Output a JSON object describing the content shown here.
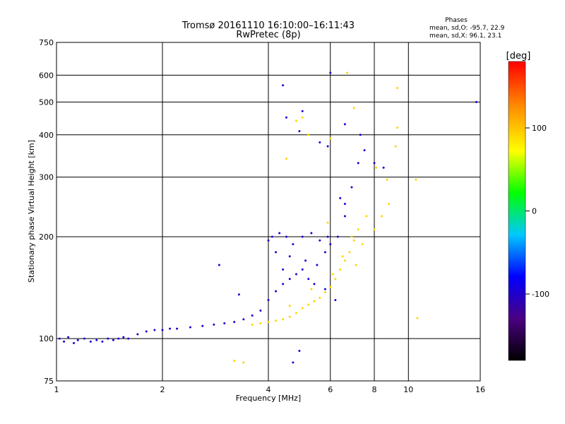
{
  "chart_data": {
    "type": "scatter",
    "title": "Tromsø 20161110 16:10:00–16:11:43",
    "subtitle": "RwPretec (8p)",
    "xlabel": "Frequency [MHz]",
    "ylabel": "Stationary phase Virtual Height [km]",
    "x_scale": "log",
    "y_scale": "log",
    "xlim": [
      1,
      16
    ],
    "ylim": [
      75,
      750
    ],
    "xticks": [
      {
        "value": 1,
        "label": "1"
      },
      {
        "value": 2,
        "label": "2"
      },
      {
        "value": 4,
        "label": "4"
      },
      {
        "value": 6,
        "label": "6"
      },
      {
        "value": 8,
        "label": "8"
      },
      {
        "value": 10,
        "label": "10"
      },
      {
        "value": 16,
        "label": "16"
      }
    ],
    "yticks": [
      {
        "value": 75,
        "label": "75"
      },
      {
        "value": 100,
        "label": "100"
      },
      {
        "value": 200,
        "label": "200"
      },
      {
        "value": 300,
        "label": "300"
      },
      {
        "value": 400,
        "label": "400"
      },
      {
        "value": 500,
        "label": "500"
      },
      {
        "value": 600,
        "label": "600"
      },
      {
        "value": 750,
        "label": "750"
      }
    ],
    "grid": true,
    "stats": {
      "heading": "Phases",
      "line_o": "mean, sd,O: -95.7, 22.9",
      "line_x": "mean, sd,X:  96.1, 23.1"
    },
    "colorbar": {
      "label": "[deg]",
      "range": [
        -180,
        180
      ],
      "ticks": [
        {
          "value": 100,
          "label": "100"
        },
        {
          "value": 0,
          "label": "0"
        },
        {
          "value": -100,
          "label": "-100"
        }
      ],
      "colormap": [
        "#000000",
        "#4b0082",
        "#0000ff",
        "#00c8ff",
        "#00ff00",
        "#ffff00",
        "#ff8c00",
        "#ff0000"
      ]
    },
    "series": [
      {
        "mode": "O",
        "phase_mean": -95.7,
        "phase_sd": 22.9,
        "points": [
          [
            1.02,
            100
          ],
          [
            1.05,
            98
          ],
          [
            1.08,
            101
          ],
          [
            1.12,
            97
          ],
          [
            1.15,
            99
          ],
          [
            1.2,
            100
          ],
          [
            1.25,
            98
          ],
          [
            1.3,
            99
          ],
          [
            1.35,
            98
          ],
          [
            1.4,
            100
          ],
          [
            1.45,
            99
          ],
          [
            1.5,
            100
          ],
          [
            1.55,
            101
          ],
          [
            1.6,
            100
          ],
          [
            1.7,
            103
          ],
          [
            1.8,
            105
          ],
          [
            1.9,
            106
          ],
          [
            2.0,
            106
          ],
          [
            2.1,
            107
          ],
          [
            2.2,
            107
          ],
          [
            2.4,
            108
          ],
          [
            2.6,
            109
          ],
          [
            2.8,
            110
          ],
          [
            3.0,
            111
          ],
          [
            3.2,
            112
          ],
          [
            3.4,
            114
          ],
          [
            3.6,
            117
          ],
          [
            3.8,
            121
          ],
          [
            4.0,
            130
          ],
          [
            4.2,
            138
          ],
          [
            4.4,
            145
          ],
          [
            4.6,
            150
          ],
          [
            4.8,
            155
          ],
          [
            5.0,
            160
          ],
          [
            5.2,
            150
          ],
          [
            5.5,
            165
          ],
          [
            5.8,
            180
          ],
          [
            6.0,
            190
          ],
          [
            6.3,
            200
          ],
          [
            6.6,
            230
          ],
          [
            6.9,
            280
          ],
          [
            7.2,
            330
          ],
          [
            7.5,
            360
          ],
          [
            8.0,
            330
          ],
          [
            8.5,
            320
          ],
          [
            4.0,
            195
          ],
          [
            4.1,
            200
          ],
          [
            4.3,
            205
          ],
          [
            4.5,
            200
          ],
          [
            4.7,
            190
          ],
          [
            5.0,
            200
          ],
          [
            5.3,
            205
          ],
          [
            5.6,
            195
          ],
          [
            5.9,
            200
          ],
          [
            4.2,
            180
          ],
          [
            4.6,
            175
          ],
          [
            5.1,
            170
          ],
          [
            4.4,
            160
          ],
          [
            5.4,
            145
          ],
          [
            5.8,
            140
          ],
          [
            6.2,
            130
          ],
          [
            5.6,
            380
          ],
          [
            5.9,
            370
          ],
          [
            4.5,
            450
          ],
          [
            4.9,
            410
          ],
          [
            5.0,
            470
          ],
          [
            6.6,
            430
          ],
          [
            6.4,
            260
          ],
          [
            6.6,
            250
          ],
          [
            7.3,
            400
          ],
          [
            4.4,
            560
          ],
          [
            6.0,
            610
          ],
          [
            15.6,
            500
          ],
          [
            3.3,
            135
          ],
          [
            2.9,
            165
          ],
          [
            4.7,
            85
          ],
          [
            4.9,
            92
          ]
        ]
      },
      {
        "mode": "X",
        "phase_mean": 96.1,
        "phase_sd": 23.1,
        "points": [
          [
            3.6,
            110
          ],
          [
            3.8,
            111
          ],
          [
            4.0,
            112
          ],
          [
            4.2,
            113
          ],
          [
            4.4,
            114
          ],
          [
            4.6,
            116
          ],
          [
            4.8,
            119
          ],
          [
            5.0,
            123
          ],
          [
            5.2,
            126
          ],
          [
            5.4,
            129
          ],
          [
            5.6,
            132
          ],
          [
            5.8,
            137
          ],
          [
            6.0,
            142
          ],
          [
            6.2,
            150
          ],
          [
            6.4,
            160
          ],
          [
            6.6,
            170
          ],
          [
            6.8,
            180
          ],
          [
            7.0,
            195
          ],
          [
            7.2,
            210
          ],
          [
            7.6,
            230
          ],
          [
            8.0,
            210
          ],
          [
            8.4,
            230
          ],
          [
            8.8,
            250
          ],
          [
            4.6,
            125
          ],
          [
            5.3,
            140
          ],
          [
            6.1,
            155
          ],
          [
            6.5,
            175
          ],
          [
            7.1,
            165
          ],
          [
            5.0,
            450
          ],
          [
            5.2,
            400
          ],
          [
            6.0,
            390
          ],
          [
            7.0,
            480
          ],
          [
            8.7,
            295
          ],
          [
            9.3,
            550
          ],
          [
            9.3,
            420
          ],
          [
            9.2,
            370
          ],
          [
            8.1,
            320
          ],
          [
            10.5,
            295
          ],
          [
            10.6,
            115
          ],
          [
            3.4,
            85
          ],
          [
            3.2,
            86
          ],
          [
            4.5,
            340
          ],
          [
            5.9,
            220
          ],
          [
            6.7,
            610
          ],
          [
            6.9,
            200
          ],
          [
            7.4,
            190
          ],
          [
            4.8,
            440
          ]
        ]
      }
    ]
  }
}
